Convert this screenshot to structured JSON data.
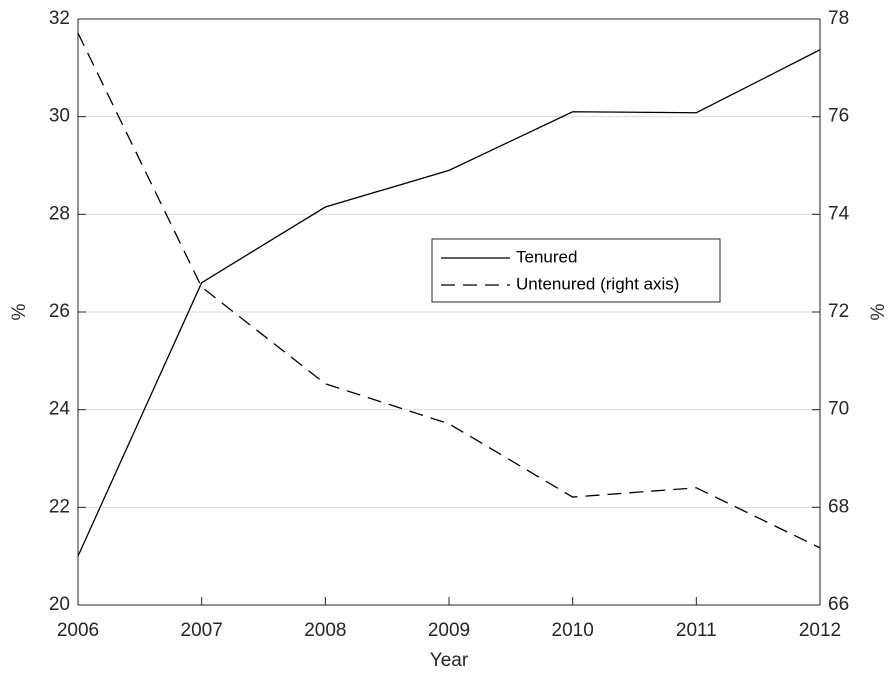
{
  "chart_data": {
    "type": "line",
    "x": [
      2006,
      2007,
      2008,
      2009,
      2010,
      2011,
      2012
    ],
    "series": [
      {
        "name": "Tenured",
        "color": "#000000",
        "dash": "solid",
        "values": [
          21.0,
          26.6,
          28.15,
          28.9,
          30.1,
          30.08,
          31.37
        ]
      },
      {
        "name": "Untenured (right axis)",
        "color": "#000000",
        "dash": "dashed",
        "axis": "y2",
        "values": [
          77.71,
          72.51,
          70.53,
          69.71,
          68.21,
          68.4,
          67.17
        ]
      }
    ],
    "xlim": [
      2006,
      2012
    ],
    "xticks": [
      2006,
      2007,
      2008,
      2009,
      2010,
      2011,
      2012
    ],
    "ylim": [
      20,
      32
    ],
    "yticks": [
      20,
      22,
      24,
      26,
      28,
      30,
      32
    ],
    "y2lim": [
      66,
      78
    ],
    "y2ticks": [
      66,
      68,
      70,
      72,
      74,
      76,
      78
    ],
    "xlabel": "Year",
    "ylabel": "%",
    "y2label": "%",
    "grid": true,
    "legend": "center"
  }
}
